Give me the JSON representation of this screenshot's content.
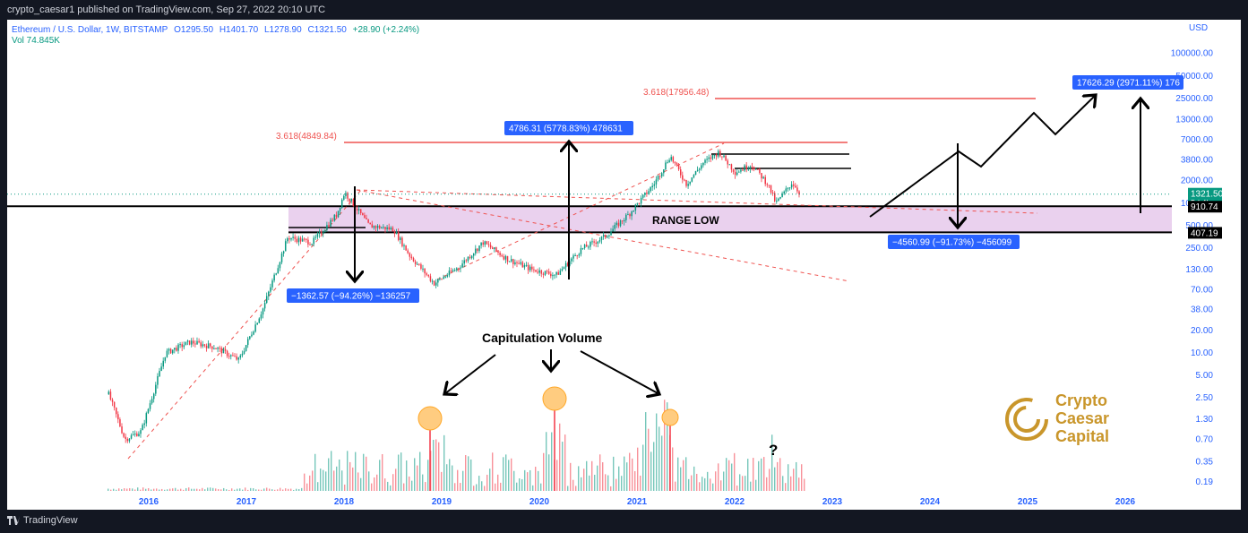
{
  "header": {
    "published": "crypto_caesar1 published on TradingView.com, Sep 27, 2022 20:10 UTC"
  },
  "footer": {
    "brand": "TradingView"
  },
  "legend": {
    "symbol": "Ethereum / U.S. Dollar, 1W, BITSTAMP",
    "open": "O1295.50",
    "high": "H1401.70",
    "low": "L1278.90",
    "close": "C1321.50",
    "change": "+28.90 (+2.24%)",
    "volume": "Vol  74.845K"
  },
  "colors": {
    "up": "#089981",
    "down": "#f23645",
    "range_fill": "#e1bee7",
    "fib": "#ef5350",
    "label_blue": "#2962ff",
    "logo_gold": "#c9962b"
  },
  "chart_data": {
    "type": "candlestick",
    "yscale": "log",
    "y_axis_title": "USD",
    "y_ticks": [
      100000,
      50000,
      25000,
      13000,
      7000,
      3800,
      2000,
      1000,
      500,
      250,
      130,
      70,
      38,
      20,
      10,
      5,
      2.5,
      1.3,
      0.7,
      0.35,
      0.19
    ],
    "y_tick_labels": [
      "100000.00",
      "50000.00",
      "25000.00",
      "13000.00",
      "7000.00",
      "3800.00",
      "2000.00",
      "1000.00",
      "500.00",
      "250.00",
      "130.00",
      "70.00",
      "38.00",
      "20.00",
      "10.00",
      "5.00",
      "2.50",
      "1.30",
      "0.70",
      "0.35",
      "0.19"
    ],
    "ylim": [
      0.16,
      150000
    ],
    "x_ticks": [
      "2016",
      "2017",
      "2018",
      "2019",
      "2020",
      "2021",
      "2022",
      "2023",
      "2024",
      "2025",
      "2026"
    ],
    "price_path": [
      [
        "2015-08",
        2.8
      ],
      [
        "2015-10",
        0.7
      ],
      [
        "2015-12",
        0.9
      ],
      [
        "2016-03",
        10
      ],
      [
        "2016-06",
        14
      ],
      [
        "2016-09",
        12
      ],
      [
        "2016-12",
        8
      ],
      [
        "2017-03",
        40
      ],
      [
        "2017-06",
        350
      ],
      [
        "2017-09",
        300
      ],
      [
        "2017-12",
        700
      ],
      [
        "2018-01",
        1400
      ],
      [
        "2018-04",
        500
      ],
      [
        "2018-07",
        450
      ],
      [
        "2018-09",
        200
      ],
      [
        "2018-12",
        85
      ],
      [
        "2019-03",
        140
      ],
      [
        "2019-06",
        300
      ],
      [
        "2019-09",
        180
      ],
      [
        "2019-12",
        130
      ],
      [
        "2020-03",
        110
      ],
      [
        "2020-06",
        240
      ],
      [
        "2020-09",
        360
      ],
      [
        "2020-12",
        730
      ],
      [
        "2021-03",
        1800
      ],
      [
        "2021-05",
        4300
      ],
      [
        "2021-07",
        1800
      ],
      [
        "2021-09",
        3400
      ],
      [
        "2021-11",
        4850
      ],
      [
        "2022-01",
        2600
      ],
      [
        "2022-03",
        3300
      ],
      [
        "2022-05",
        1800
      ],
      [
        "2022-06",
        1000
      ],
      [
        "2022-08",
        1900
      ],
      [
        "2022-09",
        1321.5
      ]
    ],
    "last_price": "1321.50",
    "last_price_sub": "5d 4h",
    "levels": [
      {
        "name": "range-high",
        "value": 910.74,
        "label": "910.74"
      },
      {
        "name": "range-low",
        "value": 407.19,
        "label": "407.19"
      }
    ],
    "fib_labels": [
      {
        "label": "3.618(4849.84)",
        "value": 4849.84
      },
      {
        "label": "3.618(17956.48)",
        "value": 17956.48
      }
    ],
    "measure_labels": [
      "4786.31 (5778.83%) 478631",
      "−1362.57 (−94.26%) −136257",
      "−4560.99 (−91.73%) −456099",
      "17626.29 (2971.11%) 176"
    ],
    "annotations": {
      "range_low": "RANGE LOW",
      "capitulation": "Capitulation Volume",
      "question": "?"
    },
    "volume_spikes": [
      "2018-12",
      "2020-03",
      "2021-05"
    ],
    "brand_logo": [
      "Crypto",
      "Caesar",
      "Capital"
    ]
  }
}
